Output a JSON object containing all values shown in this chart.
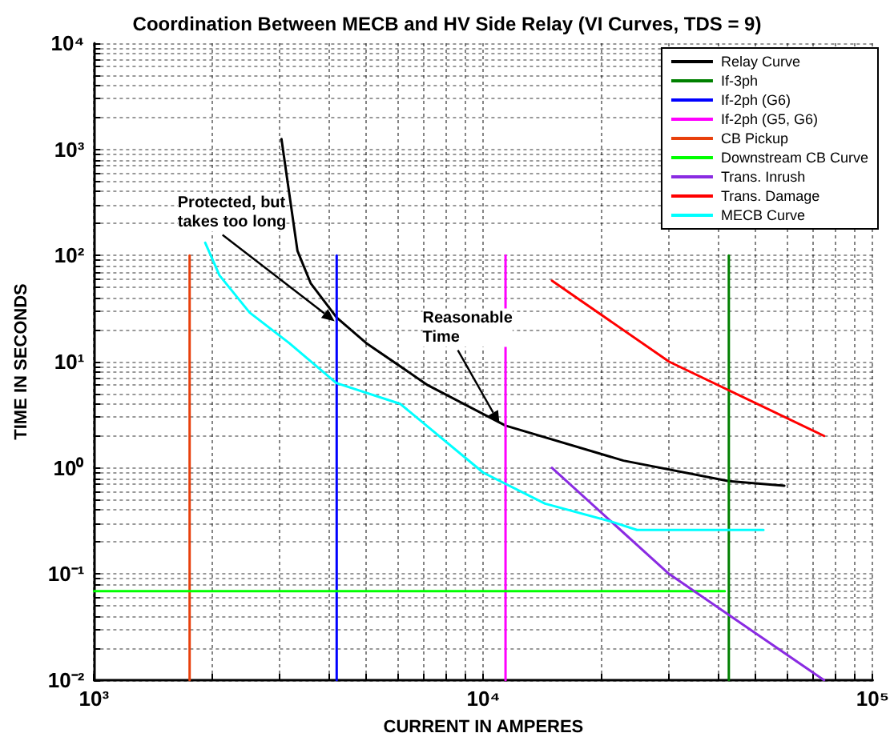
{
  "chart_data": {
    "type": "line",
    "title": "Coordination Between MECB and HV Side Relay (VI Curves, TDS = 9)",
    "xlabel": "CURRENT IN AMPERES",
    "ylabel": "TIME IN SECONDS",
    "log": "xy",
    "grid": true,
    "legend": "top right",
    "marker": "none",
    "line_style": "solid",
    "xlim": [
      1000,
      100000
    ],
    "xticks": [
      {
        "value": 1000,
        "label": "10³"
      },
      {
        "value": 10000,
        "label": "10⁴"
      },
      {
        "value": 100000,
        "label": "10⁵"
      }
    ],
    "ylim": [
      0.01,
      10000
    ],
    "yticks": [
      {
        "value": 0.01,
        "label": "10⁻²"
      },
      {
        "value": 0.1,
        "label": "10⁻¹"
      },
      {
        "value": 1,
        "label": "10⁰"
      },
      {
        "value": 10,
        "label": "10¹"
      },
      {
        "value": 100,
        "label": "10²"
      },
      {
        "value": 1000,
        "label": "10³"
      },
      {
        "value": 10000,
        "label": "10⁴"
      }
    ],
    "series": [
      {
        "name": "Relay Curve",
        "color": "#000000",
        "x": [
          3030,
          3330,
          3600,
          4200,
          5000,
          7200,
          11400,
          22900,
          42700,
          59300
        ],
        "values": [
          1250,
          111,
          55,
          26,
          15,
          6,
          2.5,
          1.17,
          0.75,
          0.68
        ]
      },
      {
        "name": "If-3ph",
        "color": "#008000",
        "x": [
          42700,
          42700
        ],
        "values": [
          100,
          0.01
        ]
      },
      {
        "name": "If-2ph (G6)",
        "color": "#0000ff",
        "x": [
          4200,
          4200
        ],
        "values": [
          100,
          0.01
        ]
      },
      {
        "name": "If-2ph (G5, G6)",
        "color": "#ff00ff",
        "x": [
          11400,
          11400
        ],
        "values": [
          100,
          0.01
        ]
      },
      {
        "name": "CB Pickup",
        "color": "#e8400c",
        "x": [
          1760,
          1760
        ],
        "values": [
          100,
          0.01
        ]
      },
      {
        "name": "Downstream CB Curve",
        "color": "#00ff00",
        "x": [
          1000,
          41700
        ],
        "values": [
          0.069,
          0.069
        ]
      },
      {
        "name": "Trans. Inrush",
        "color": "#8a2be2",
        "x": [
          15000,
          30000,
          75000
        ],
        "values": [
          1,
          0.1,
          0.01
        ]
      },
      {
        "name": "Trans. Damage",
        "color": "#ff0000",
        "x": [
          15000,
          30000,
          75000
        ],
        "values": [
          58,
          10,
          2
        ]
      },
      {
        "name": "MECB Curve",
        "color": "#00ffff",
        "x": [
          1930,
          2100,
          2510,
          3170,
          4190,
          6120,
          10000,
          14400,
          21400,
          24800,
          52400
        ],
        "values": [
          132,
          65,
          29,
          15,
          6.3,
          4,
          0.9,
          0.46,
          0.31,
          0.26,
          0.26
        ]
      }
    ],
    "annotations": [
      {
        "text": "Protected, but takes too long",
        "x": 4150,
        "y": 24
      },
      {
        "text": "Reasonable Time",
        "x": 11000,
        "y": 2.6
      }
    ]
  }
}
